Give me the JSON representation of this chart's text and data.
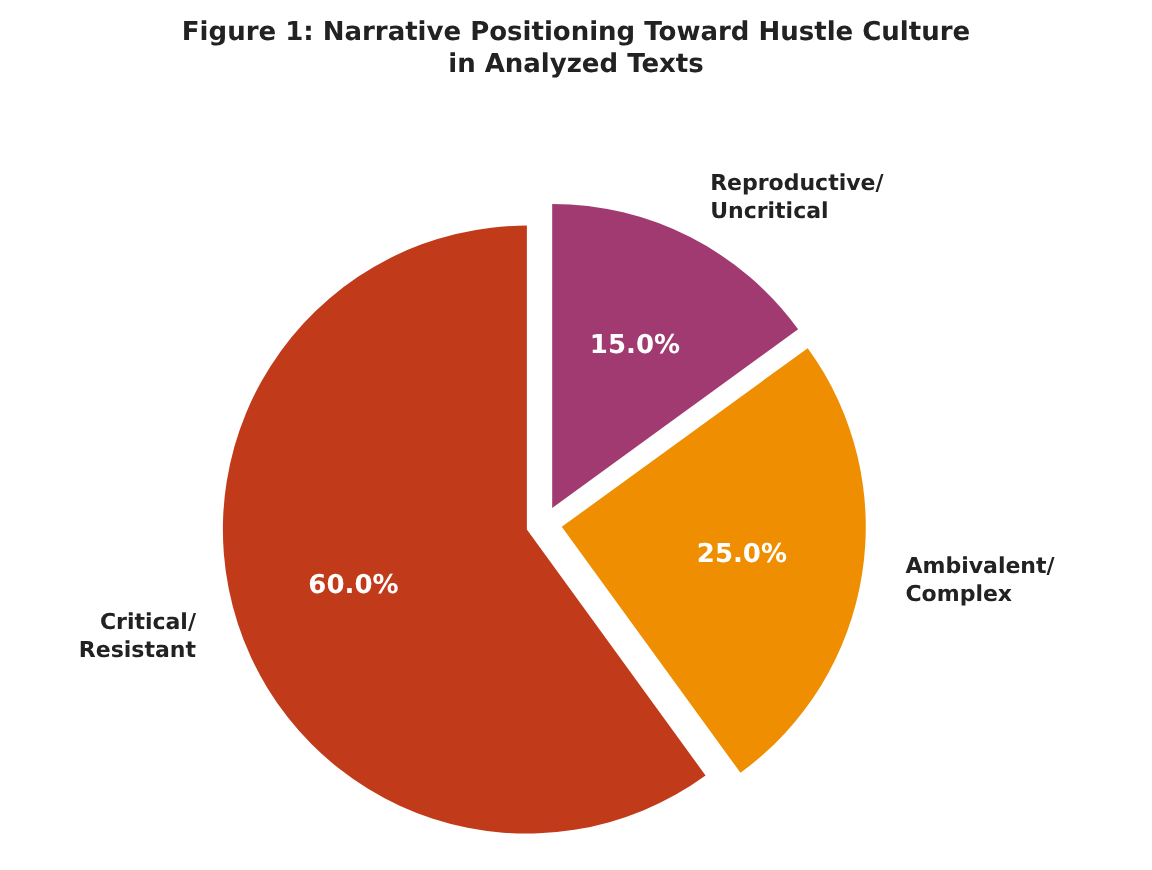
{
  "chart_data": {
    "type": "pie",
    "title": "Figure 1: Narrative Positioning Toward Hustle Culture\nin Analyzed Texts",
    "categories": [
      "Critical/\nResistant",
      "Ambivalent/\nComplex",
      "Reproductive/\nUncritical"
    ],
    "values": [
      60,
      25,
      15
    ],
    "value_labels": [
      "60.0%",
      "25.0%",
      "15.0%"
    ],
    "colors": [
      "#c13b1b",
      "#ef8e00",
      "#a13a70"
    ]
  }
}
